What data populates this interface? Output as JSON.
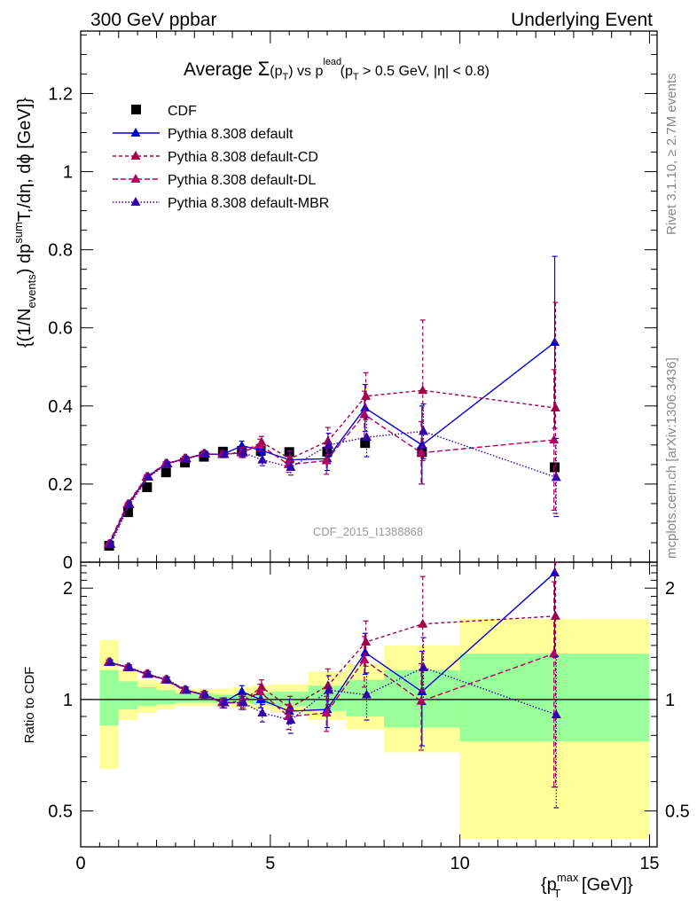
{
  "header": {
    "left": "300 GeV ppbar",
    "right": "Underlying Event"
  },
  "plot_title": {
    "prefix": "Average ",
    "sigma": "Σ",
    "pt_arg": "(p",
    "sub_t": "T",
    "close": ")",
    "vs": " vs p",
    "sup_lead": "lead",
    "cut": " (p",
    "cut_rest": " > 0.5 GeV, |η| < 0.8)"
  },
  "side_labels": {
    "rivet": "Rivet 3.1.10, ≥ 2.7M events",
    "mcplots": "mcplots.cern.ch [arXiv:1306.3436]"
  },
  "watermark": "CDF_2015_I1388868",
  "ylabel_main": {
    "a": "{(1/N",
    "sub_events": "events",
    "b": ") dp",
    "sup_sum": "sum",
    "c": "T,/dη, dϕ [GeV]}"
  },
  "ylabel_ratio": "Ratio to CDF",
  "xlabel": {
    "a": "{p",
    "sup_max": "max",
    "sub_t": "T",
    "b": " [GeV]}"
  },
  "legend": [
    {
      "label": "CDF",
      "color": "#000000",
      "marker": "square",
      "dash": ""
    },
    {
      "label": "Pythia 8.308 default",
      "color": "#0000dd",
      "marker": "triangle",
      "dash": ""
    },
    {
      "label": "Pythia 8.308 default-CD",
      "color": "#a0004a",
      "marker": "triangle",
      "dash": "4,3"
    },
    {
      "label": "Pythia 8.308 default-DL",
      "color": "#b00060",
      "marker": "triangle",
      "dash": "6,3"
    },
    {
      "label": "Pythia 8.308 default-MBR",
      "color": "#3300aa",
      "marker": "triangle",
      "dash": "1.5,2"
    }
  ],
  "chart_data": [
    {
      "type": "scatter",
      "panel": "main",
      "xlim": [
        0,
        15.2
      ],
      "ylim": [
        0,
        1.36
      ],
      "x_ticks": [
        0,
        5,
        10,
        15
      ],
      "y_ticks": [
        0,
        0.2,
        0.4,
        0.6,
        0.8,
        1,
        1.2
      ],
      "y_tick_labels": [
        "0",
        "0.2",
        "0.4",
        "0.6",
        "0.8",
        "1",
        "1.2"
      ],
      "series": [
        {
          "name": "CDF",
          "x": [
            0.75,
            1.25,
            1.75,
            2.25,
            2.75,
            3.25,
            3.75,
            4.25,
            4.75,
            5.5,
            6.5,
            7.5,
            9.0,
            12.5
          ],
          "y": [
            0.042,
            0.128,
            0.192,
            0.23,
            0.255,
            0.27,
            0.283,
            0.285,
            0.285,
            0.282,
            0.283,
            0.305,
            0.282,
            0.243
          ]
        },
        {
          "name": "Pythia 8.308 default",
          "x": [
            0.75,
            1.25,
            1.75,
            2.25,
            2.75,
            3.25,
            3.75,
            4.25,
            4.75,
            5.5,
            6.5,
            7.5,
            9.0,
            12.5
          ],
          "y": [
            0.046,
            0.148,
            0.218,
            0.252,
            0.265,
            0.277,
            0.276,
            0.298,
            0.287,
            0.262,
            0.265,
            0.395,
            0.3,
            0.563
          ],
          "err": [
            0.003,
            0.004,
            0.005,
            0.005,
            0.006,
            0.007,
            0.008,
            0.012,
            0.015,
            0.02,
            0.03,
            0.06,
            0.1,
            0.22
          ]
        },
        {
          "name": "Pythia 8.308 default-CD",
          "x": [
            0.75,
            1.25,
            1.75,
            2.25,
            2.75,
            3.25,
            3.75,
            4.25,
            4.75,
            5.5,
            6.5,
            7.5,
            9.0,
            12.5
          ],
          "y": [
            0.046,
            0.148,
            0.218,
            0.252,
            0.265,
            0.277,
            0.276,
            0.282,
            0.307,
            0.265,
            0.31,
            0.425,
            0.44,
            0.395
          ],
          "err": [
            0.003,
            0.004,
            0.005,
            0.005,
            0.006,
            0.007,
            0.008,
            0.012,
            0.015,
            0.02,
            0.035,
            0.06,
            0.18,
            0.27
          ]
        },
        {
          "name": "Pythia 8.308 default-DL",
          "x": [
            0.75,
            1.25,
            1.75,
            2.25,
            2.75,
            3.25,
            3.75,
            4.25,
            4.75,
            5.5,
            6.5,
            7.5,
            9.0,
            12.5
          ],
          "y": [
            0.046,
            0.148,
            0.218,
            0.252,
            0.265,
            0.277,
            0.276,
            0.28,
            0.3,
            0.25,
            0.26,
            0.378,
            0.28,
            0.313
          ],
          "err": [
            0.003,
            0.004,
            0.005,
            0.005,
            0.006,
            0.007,
            0.008,
            0.012,
            0.015,
            0.02,
            0.035,
            0.06,
            0.08,
            0.18
          ]
        },
        {
          "name": "Pythia 8.308 default-MBR",
          "x": [
            0.75,
            1.25,
            1.75,
            2.25,
            2.75,
            3.25,
            3.75,
            4.25,
            4.75,
            5.5,
            6.5,
            7.5,
            9.0,
            12.5
          ],
          "y": [
            0.046,
            0.148,
            0.218,
            0.252,
            0.265,
            0.277,
            0.276,
            0.28,
            0.262,
            0.243,
            0.3,
            0.32,
            0.335,
            0.217
          ],
          "err": [
            0.003,
            0.004,
            0.005,
            0.005,
            0.006,
            0.007,
            0.008,
            0.012,
            0.015,
            0.02,
            0.03,
            0.05,
            0.07,
            0.1
          ]
        }
      ]
    },
    {
      "type": "scatter",
      "panel": "ratio",
      "xlim": [
        0,
        15.2
      ],
      "ylim": [
        0.4,
        2.35
      ],
      "log_y": true,
      "x_ticks": [
        0,
        5,
        10,
        15
      ],
      "x_tick_labels": [
        "0",
        "5",
        "10",
        "15"
      ],
      "y_ticks": [
        0.5,
        1,
        2
      ],
      "y_tick_labels": [
        "0.5",
        "1",
        "2"
      ],
      "bands": {
        "x_edges": [
          0.5,
          1.0,
          1.5,
          2.0,
          2.5,
          3.0,
          3.5,
          4.0,
          4.5,
          5.0,
          6.0,
          7.0,
          8.0,
          10.0,
          15.0
        ],
        "inner": [
          [
            0.85,
            1.2
          ],
          [
            0.94,
            1.12
          ],
          [
            0.96,
            1.08
          ],
          [
            0.97,
            1.06
          ],
          [
            0.98,
            1.04
          ],
          [
            0.98,
            1.04
          ],
          [
            0.98,
            1.03
          ],
          [
            0.98,
            1.03
          ],
          [
            0.97,
            1.04
          ],
          [
            0.96,
            1.05
          ],
          [
            0.93,
            1.09
          ],
          [
            0.9,
            1.13
          ],
          [
            0.84,
            1.2
          ],
          [
            0.77,
            1.33
          ]
        ],
        "outer": [
          [
            0.65,
            1.45
          ],
          [
            0.88,
            1.2
          ],
          [
            0.92,
            1.13
          ],
          [
            0.94,
            1.11
          ],
          [
            0.96,
            1.07
          ],
          [
            0.96,
            1.07
          ],
          [
            0.96,
            1.07
          ],
          [
            0.95,
            1.08
          ],
          [
            0.94,
            1.09
          ],
          [
            0.92,
            1.1
          ],
          [
            0.88,
            1.19
          ],
          [
            0.83,
            1.25
          ],
          [
            0.72,
            1.4
          ],
          [
            0.42,
            1.65
          ]
        ]
      },
      "series": [
        {
          "name": "Pythia 8.308 default",
          "y": [
            1.26,
            1.22,
            1.17,
            1.13,
            1.06,
            1.03,
            0.98,
            1.05,
            1.0,
            0.93,
            0.94,
            1.34,
            1.05,
            2.2
          ],
          "err": [
            0.02,
            0.02,
            0.02,
            0.02,
            0.02,
            0.02,
            0.03,
            0.04,
            0.05,
            0.07,
            0.1,
            0.17,
            0.3,
            0.9
          ]
        },
        {
          "name": "Pythia 8.308 default-CD",
          "y": [
            1.26,
            1.22,
            1.17,
            1.13,
            1.06,
            1.03,
            0.98,
            0.99,
            1.08,
            0.95,
            1.09,
            1.43,
            1.6,
            1.68
          ],
          "err": [
            0.02,
            0.02,
            0.02,
            0.02,
            0.02,
            0.02,
            0.03,
            0.04,
            0.05,
            0.07,
            0.12,
            0.2,
            0.55,
            1.1
          ]
        },
        {
          "name": "Pythia 8.308 default-DL",
          "y": [
            1.26,
            1.22,
            1.17,
            1.13,
            1.06,
            1.03,
            0.98,
            0.98,
            1.05,
            0.9,
            0.92,
            1.28,
            0.99,
            1.33
          ],
          "err": [
            0.02,
            0.02,
            0.02,
            0.02,
            0.02,
            0.02,
            0.03,
            0.04,
            0.05,
            0.07,
            0.1,
            0.2,
            0.26,
            0.75
          ]
        },
        {
          "name": "Pythia 8.308 default-MBR",
          "y": [
            1.26,
            1.22,
            1.17,
            1.13,
            1.06,
            1.03,
            0.98,
            0.98,
            0.92,
            0.88,
            1.06,
            1.03,
            1.22,
            0.91
          ],
          "err": [
            0.02,
            0.02,
            0.02,
            0.02,
            0.02,
            0.02,
            0.03,
            0.04,
            0.05,
            0.07,
            0.1,
            0.15,
            0.25,
            0.4
          ]
        }
      ]
    }
  ]
}
